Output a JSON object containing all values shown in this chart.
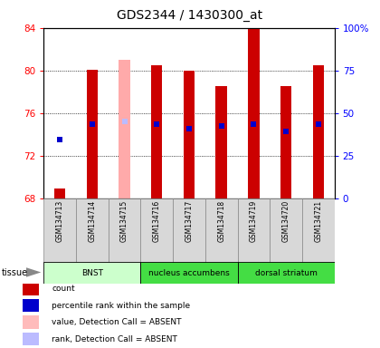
{
  "title": "GDS2344 / 1430300_at",
  "samples": [
    "GSM134713",
    "GSM134714",
    "GSM134715",
    "GSM134716",
    "GSM134717",
    "GSM134718",
    "GSM134719",
    "GSM134720",
    "GSM134721"
  ],
  "bar_bottoms": [
    68,
    68,
    68,
    68,
    68,
    68,
    68,
    68,
    68
  ],
  "bar_tops": [
    68.9,
    80.1,
    81.0,
    80.5,
    80.0,
    78.5,
    83.9,
    78.5,
    80.5
  ],
  "bar_colors": [
    "#cc0000",
    "#cc0000",
    "#ffaaaa",
    "#cc0000",
    "#cc0000",
    "#cc0000",
    "#cc0000",
    "#cc0000",
    "#cc0000"
  ],
  "rank_values": [
    73.5,
    75.0,
    75.2,
    75.0,
    74.5,
    74.8,
    75.0,
    74.3,
    75.0
  ],
  "rank_colors": [
    "#0000cc",
    "#0000cc",
    "#bbbbff",
    "#0000cc",
    "#0000cc",
    "#0000cc",
    "#0000cc",
    "#0000cc",
    "#0000cc"
  ],
  "ylim": [
    68,
    84
  ],
  "yticks": [
    68,
    72,
    76,
    80,
    84
  ],
  "right_yticks": [
    0,
    25,
    50,
    75,
    100
  ],
  "right_ylim": [
    0,
    100
  ],
  "tissue_groups": [
    {
      "label": "BNST",
      "start": 0,
      "end": 3,
      "color": "#ccffcc"
    },
    {
      "label": "nucleus accumbens",
      "start": 3,
      "end": 6,
      "color": "#44dd44"
    },
    {
      "label": "dorsal striatum",
      "start": 6,
      "end": 9,
      "color": "#44dd44"
    }
  ],
  "legend_items": [
    {
      "label": "count",
      "color": "#cc0000"
    },
    {
      "label": "percentile rank within the sample",
      "color": "#0000cc"
    },
    {
      "label": "value, Detection Call = ABSENT",
      "color": "#ffbbbb"
    },
    {
      "label": "rank, Detection Call = ABSENT",
      "color": "#bbbbff"
    }
  ],
  "bar_width": 0.35,
  "rank_marker_size": 4.5
}
